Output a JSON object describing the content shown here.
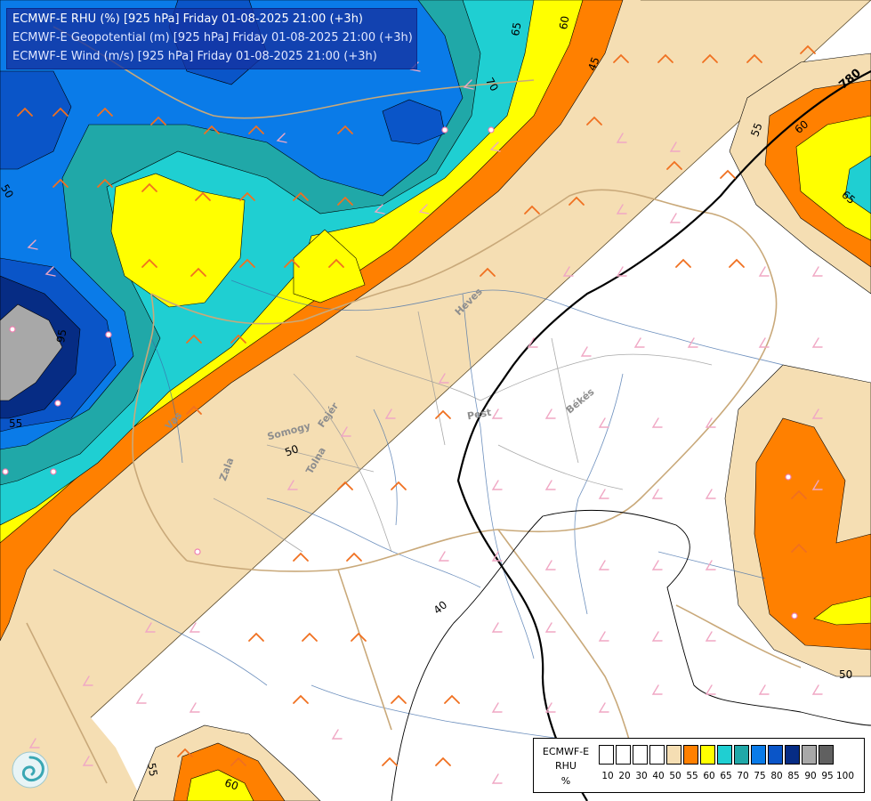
{
  "header": {
    "title_rhu": "ECMWF-E RHU (%) [925 hPa] Friday 01-08-2025 21:00 (+3h)",
    "title_geo": "ECMWF-E Geopotential (m) [925 hPa] Friday 01-08-2025 21:00 (+3h)",
    "title_wind": "ECMWF-E Wind (m/s) [925 hPa] Friday 01-08-2025 21:00 (+3h)"
  },
  "contour_labels": {
    "c65_top": "65",
    "c60_top": "60",
    "c45": "45",
    "c70": "70",
    "c780": "780",
    "c55_ne": "55",
    "c60_ne": "60",
    "c65_ne": "65",
    "c55_w": "55",
    "c50_w": "50",
    "c95_w": "95",
    "c50_mid": "50",
    "c40": "40",
    "c50_se": "50",
    "c55_sw": "55",
    "c60_sw": "60"
  },
  "place_labels": {
    "vas": "Vas",
    "zala": "Zala",
    "somogy": "Somogy",
    "tolna": "Tolna",
    "fejer": "Fejér",
    "heves": "Heves",
    "pest": "Pest",
    "bekes": "Békés"
  },
  "legend": {
    "model": "ECMWF-E",
    "variable": "RHU",
    "unit": "%",
    "ticks": [
      "10",
      "20",
      "30",
      "40",
      "50",
      "55",
      "60",
      "65",
      "70",
      "75",
      "80",
      "85",
      "90",
      "95",
      "100"
    ],
    "colors": [
      "#ffffff",
      "#ffffff",
      "#ffffff",
      "#ffffff",
      "#f5deb3",
      "#ff8000",
      "#ffff00",
      "#1fcfd2",
      "#20a8a8",
      "#0a7be8",
      "#0a55c8",
      "#062c84",
      "#a8a8a8",
      "#606060"
    ]
  },
  "icons": {
    "logo": "ecmwf-swirl-logo-icon"
  }
}
